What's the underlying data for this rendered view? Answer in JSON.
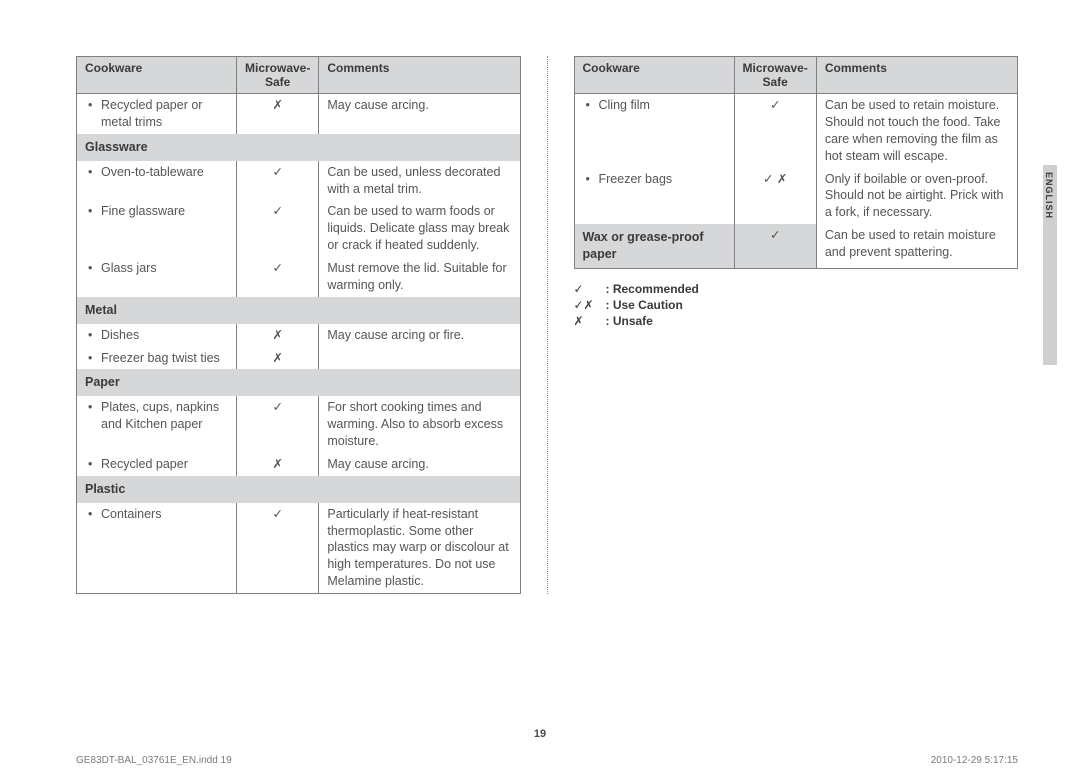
{
  "left_table": {
    "headers": [
      "Cookware",
      "Microwave-Safe",
      "Comments"
    ],
    "rows": [
      {
        "type": "item",
        "bullet": true,
        "cookware": "Recycled paper or metal trims",
        "safe": "✗",
        "comments": "May cause arcing."
      },
      {
        "type": "category",
        "label": "Glassware"
      },
      {
        "type": "item",
        "bullet": true,
        "cookware": "Oven-to-tableware",
        "safe": "✓",
        "comments": "Can be used, unless decorated with a metal trim."
      },
      {
        "type": "item",
        "bullet": true,
        "cookware": "Fine glassware",
        "safe": "✓",
        "comments": "Can be used to warm foods or liquids. Delicate glass may break or crack if heated suddenly."
      },
      {
        "type": "item",
        "bullet": true,
        "cookware": "Glass jars",
        "safe": "✓",
        "comments": "Must remove the lid. Suitable for warming only."
      },
      {
        "type": "category",
        "label": "Metal"
      },
      {
        "type": "item",
        "bullet": true,
        "cookware": "Dishes",
        "safe": "✗",
        "comments": "May cause arcing or fire."
      },
      {
        "type": "item",
        "bullet": true,
        "cookware": "Freezer bag twist ties",
        "safe": "✗",
        "comments": ""
      },
      {
        "type": "category",
        "label": "Paper"
      },
      {
        "type": "item",
        "bullet": true,
        "cookware": "Plates, cups, napkins and Kitchen paper",
        "safe": "✓",
        "comments": "For short cooking times and warming. Also to absorb excess moisture."
      },
      {
        "type": "item",
        "bullet": true,
        "cookware": "Recycled paper",
        "safe": "✗",
        "comments": "May cause arcing."
      },
      {
        "type": "category",
        "label": "Plastic"
      },
      {
        "type": "item",
        "bullet": true,
        "cookware": "Containers",
        "safe": "✓",
        "comments": "Particularly if heat-resistant thermoplastic. Some other plastics may warp or discolour at high temperatures. Do not use Melamine plastic.",
        "last": true
      }
    ]
  },
  "right_table": {
    "headers": [
      "Cookware",
      "Microwave-Safe",
      "Comments"
    ],
    "rows": [
      {
        "type": "item",
        "bullet": true,
        "cookware": "Cling film",
        "safe": "✓",
        "comments": "Can be used to retain moisture. Should not touch the food. Take care when removing the film as hot steam will escape."
      },
      {
        "type": "item",
        "bullet": true,
        "cookware": "Freezer bags",
        "safe": "✓ ✗",
        "comments": "Only if boilable or oven-proof. Should not be airtight. Prick with a fork, if necessary."
      },
      {
        "type": "category-item",
        "label": "Wax or grease-proof paper",
        "safe": "✓",
        "comments": "Can be used to retain moisture and prevent spattering.",
        "last": true
      }
    ]
  },
  "legend": [
    {
      "sym": "✓",
      "label": ": Recommended"
    },
    {
      "sym": "✓✗",
      "label": ": Use Caution"
    },
    {
      "sym": "✗",
      "label": ": Unsafe"
    }
  ],
  "side_tab": "ENGLISH",
  "page_number": "19",
  "footer_left": "GE83DT-BAL_03761E_EN.indd   19",
  "footer_right": "2010-12-29     5:17:15"
}
